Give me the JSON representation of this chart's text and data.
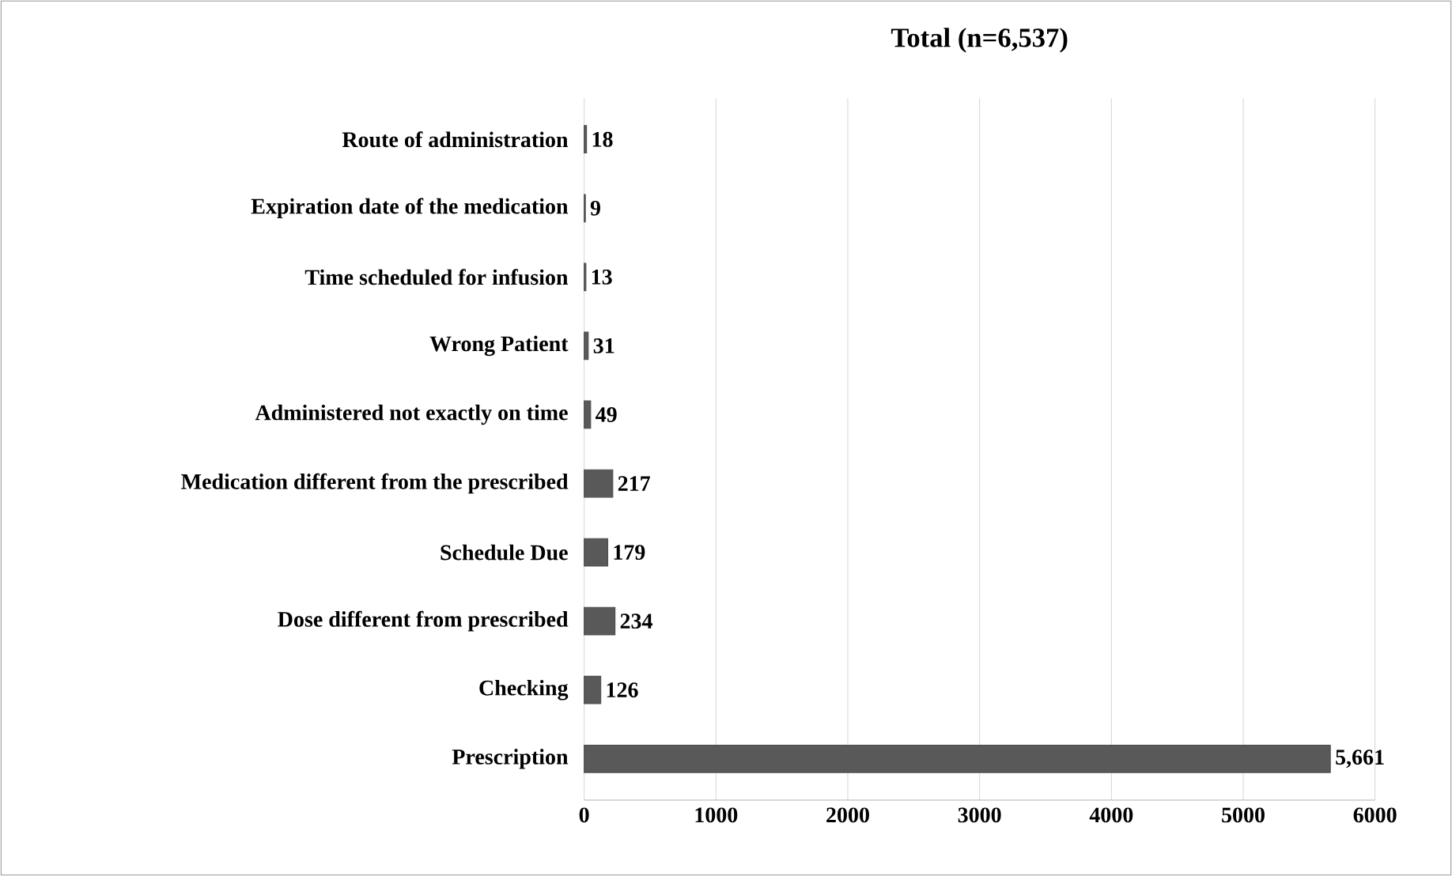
{
  "chart_data": {
    "type": "bar",
    "orientation": "horizontal",
    "title": "Total (n=6,537)",
    "categories": [
      "Route of administration",
      "Expiration date of the medication",
      "Time scheduled for infusion",
      "Wrong Patient",
      "Administered not exactly on time",
      "Medication different from the prescribed",
      "Schedule Due",
      "Dose different from prescribed",
      "Checking",
      "Prescription"
    ],
    "values": [
      18,
      9,
      13,
      31,
      49,
      217,
      179,
      234,
      126,
      5661
    ],
    "value_labels": [
      "18",
      "9",
      "13",
      "31",
      "49",
      "217",
      "179",
      "234",
      "126",
      "5,661"
    ],
    "color": "#595959",
    "xlim": [
      0,
      6000
    ],
    "xticks": [
      0,
      1000,
      2000,
      3000,
      4000,
      5000,
      6000
    ],
    "grid": "x"
  }
}
